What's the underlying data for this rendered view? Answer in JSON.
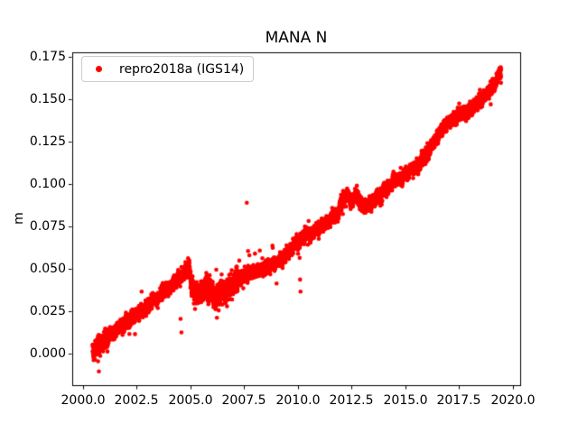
{
  "figure": {
    "background": "#ffffff",
    "text_color": "#000000",
    "spine_color": "#000000"
  },
  "chart_data": {
    "type": "scatter",
    "title": "MANA N",
    "xlabel": "",
    "ylabel": "m",
    "grid": false,
    "xlim": [
      1999.5,
      2020.34
    ],
    "ylim": [
      -0.0186,
      0.1777
    ],
    "xticks": [
      2000.0,
      2002.5,
      2005.0,
      2007.5,
      2010.0,
      2012.5,
      2015.0,
      2017.5,
      2020.0
    ],
    "xtick_labels": [
      "2000.0",
      "2002.5",
      "2005.0",
      "2007.5",
      "2010.0",
      "2012.5",
      "2015.0",
      "2017.5",
      "2020.0"
    ],
    "yticks": [
      0.0,
      0.025,
      0.05,
      0.075,
      0.1,
      0.125,
      0.15,
      0.175
    ],
    "ytick_labels": [
      "0.000",
      "0.025",
      "0.050",
      "0.075",
      "0.100",
      "0.125",
      "0.150",
      "0.175"
    ],
    "legend": {
      "position": "upper-left",
      "border_color": "#cccccc"
    },
    "series": [
      {
        "name": "repro2018a (IGS14)",
        "color": "#ff0000",
        "marker": "dot",
        "marker_radius_px": 2.3,
        "t_start": 2000.45,
        "t_end": 2019.45,
        "sampling_step_years": 0.0027,
        "noise": {
          "ar_coef": 0.82,
          "ar_sigma": 0.0008,
          "white_sigma": 0.0014,
          "white_sigma_early": 0.0026,
          "early_until": 2001.2,
          "white_sigma_dip": 0.0028,
          "dip_from": 2004.97,
          "dip_until": 2007.2,
          "heavy_tail_prob": 0.004,
          "heavy_tail_min": 0.004,
          "heavy_tail_extra": 0.006,
          "seed": 20180101
        },
        "trend_anchors": [
          [
            2000.45,
            0.002
          ],
          [
            2000.7,
            0.005
          ],
          [
            2001.0,
            0.0085
          ],
          [
            2001.5,
            0.013
          ],
          [
            2002.0,
            0.018
          ],
          [
            2002.5,
            0.0235
          ],
          [
            2003.0,
            0.0285
          ],
          [
            2003.5,
            0.034
          ],
          [
            2004.0,
            0.039
          ],
          [
            2004.5,
            0.0445
          ],
          [
            2004.8,
            0.0495
          ],
          [
            2004.93,
            0.052
          ],
          [
            2005.02,
            0.0405
          ],
          [
            2005.15,
            0.036
          ],
          [
            2005.35,
            0.034
          ],
          [
            2005.55,
            0.0365
          ],
          [
            2005.75,
            0.0395
          ],
          [
            2005.95,
            0.036
          ],
          [
            2006.15,
            0.0335
          ],
          [
            2006.35,
            0.0375
          ],
          [
            2006.55,
            0.0355
          ],
          [
            2006.8,
            0.038
          ],
          [
            2007.0,
            0.0415
          ],
          [
            2007.25,
            0.044
          ],
          [
            2007.5,
            0.0465
          ],
          [
            2007.8,
            0.048
          ],
          [
            2008.1,
            0.0495
          ],
          [
            2008.5,
            0.051
          ],
          [
            2009.0,
            0.0535
          ],
          [
            2009.5,
            0.0585
          ],
          [
            2010.0,
            0.066
          ],
          [
            2010.5,
            0.0705
          ],
          [
            2011.0,
            0.0745
          ],
          [
            2011.5,
            0.079
          ],
          [
            2011.9,
            0.0845
          ],
          [
            2012.1,
            0.0915
          ],
          [
            2012.3,
            0.0945
          ],
          [
            2012.5,
            0.0905
          ],
          [
            2012.7,
            0.0935
          ],
          [
            2012.9,
            0.0885
          ],
          [
            2013.1,
            0.0865
          ],
          [
            2013.4,
            0.089
          ],
          [
            2013.7,
            0.092
          ],
          [
            2014.0,
            0.0975
          ],
          [
            2014.3,
            0.0995
          ],
          [
            2014.7,
            0.1025
          ],
          [
            2015.0,
            0.1055
          ],
          [
            2015.3,
            0.1085
          ],
          [
            2015.6,
            0.11
          ],
          [
            2016.0,
            0.118
          ],
          [
            2016.4,
            0.127
          ],
          [
            2016.8,
            0.133
          ],
          [
            2017.1,
            0.1375
          ],
          [
            2017.5,
            0.14
          ],
          [
            2018.0,
            0.144
          ],
          [
            2018.3,
            0.147
          ],
          [
            2018.6,
            0.15
          ],
          [
            2018.9,
            0.1545
          ],
          [
            2019.1,
            0.159
          ],
          [
            2019.3,
            0.163
          ],
          [
            2019.45,
            0.1655
          ]
        ],
        "outliers": [
          [
            2000.7,
            -0.0045
          ],
          [
            2000.74,
            -0.0105
          ],
          [
            2002.42,
            0.0115
          ],
          [
            2004.54,
            0.0205
          ],
          [
            2004.58,
            0.0125
          ],
          [
            2006.18,
            0.027
          ],
          [
            2006.23,
            0.0212
          ],
          [
            2006.2,
            0.0495
          ],
          [
            2007.62,
            0.089
          ],
          [
            2007.68,
            0.0605
          ],
          [
            2007.74,
            0.058
          ],
          [
            2008.0,
            0.059
          ],
          [
            2010.08,
            0.0565
          ],
          [
            2010.1,
            0.0437
          ],
          [
            2010.12,
            0.0366
          ]
        ]
      }
    ]
  }
}
